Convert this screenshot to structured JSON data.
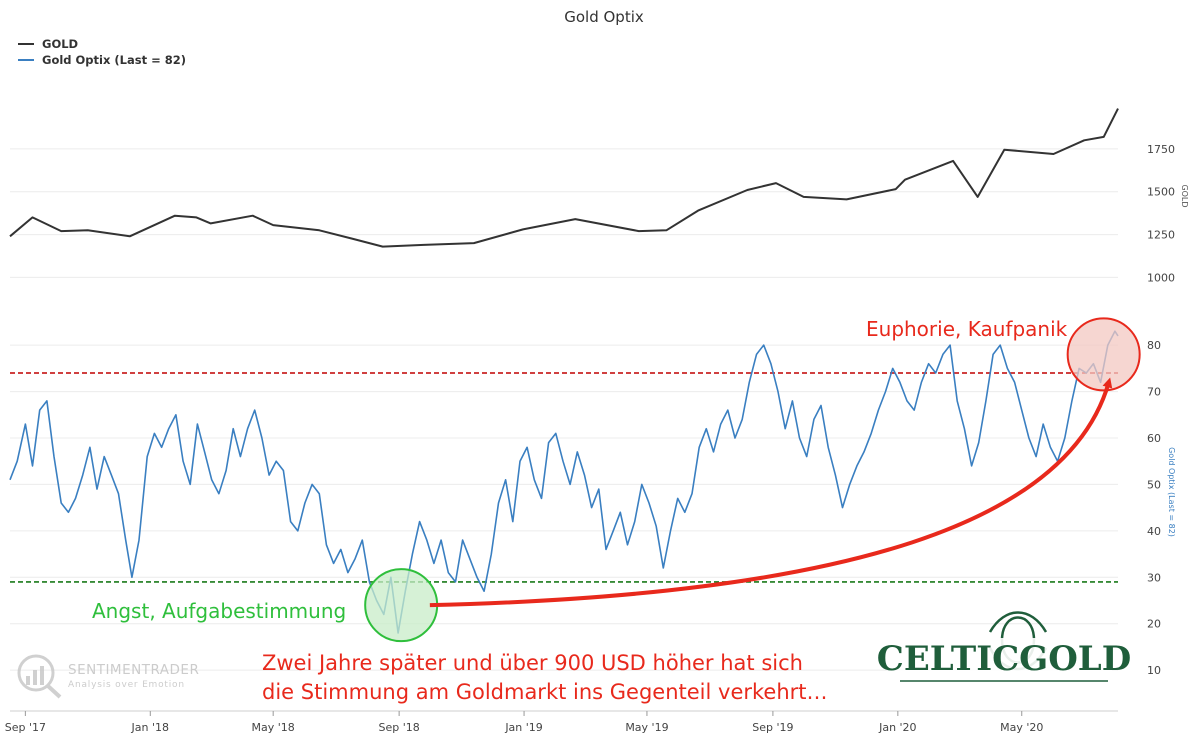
{
  "chart_data": {
    "type": "line",
    "title": "Gold Optix",
    "legend": {
      "placement": "top-left",
      "entries": [
        {
          "label": "GOLD",
          "color": "#333333"
        },
        {
          "label": "Gold Optix (Last = 82)",
          "color": "#3a7fc1"
        }
      ]
    },
    "x_axis": {
      "range": [
        "2017-08-17",
        "2020-08-03"
      ],
      "tick_dates": [
        "2017-09-01",
        "2018-01-01",
        "2018-05-01",
        "2018-09-01",
        "2019-01-01",
        "2019-05-01",
        "2019-09-01",
        "2020-01-01",
        "2020-05-01"
      ],
      "tick_labels": [
        "Sep '17",
        "Jan '18",
        "May '18",
        "Sep '18",
        "Jan '19",
        "May '19",
        "Sep '19",
        "Jan '20",
        "May '20"
      ]
    },
    "panels": [
      {
        "name": "GOLD",
        "axis_label": "GOLD",
        "ylim": [
          880,
          2000
        ],
        "y_ticks": [
          1000,
          1250,
          1500,
          1750
        ],
        "series": [
          {
            "name": "GOLD",
            "color": "#333333",
            "points": [
              [
                "2017-08-17",
                1240
              ],
              [
                "2017-09-08",
                1350
              ],
              [
                "2017-10-06",
                1270
              ],
              [
                "2017-11-01",
                1275
              ],
              [
                "2017-12-12",
                1240
              ],
              [
                "2018-01-25",
                1360
              ],
              [
                "2018-02-15",
                1350
              ],
              [
                "2018-03-01",
                1315
              ],
              [
                "2018-04-11",
                1360
              ],
              [
                "2018-05-01",
                1305
              ],
              [
                "2018-06-15",
                1275
              ],
              [
                "2018-07-18",
                1225
              ],
              [
                "2018-08-16",
                1180
              ],
              [
                "2018-09-25",
                1190
              ],
              [
                "2018-11-13",
                1200
              ],
              [
                "2018-12-31",
                1280
              ],
              [
                "2019-02-20",
                1340
              ],
              [
                "2019-04-23",
                1270
              ],
              [
                "2019-05-20",
                1275
              ],
              [
                "2019-06-20",
                1390
              ],
              [
                "2019-08-07",
                1510
              ],
              [
                "2019-09-04",
                1550
              ],
              [
                "2019-10-01",
                1470
              ],
              [
                "2019-11-12",
                1455
              ],
              [
                "2019-12-30",
                1515
              ],
              [
                "2020-01-08",
                1570
              ],
              [
                "2020-02-24",
                1680
              ],
              [
                "2020-03-19",
                1470
              ],
              [
                "2020-04-14",
                1745
              ],
              [
                "2020-06-01",
                1720
              ],
              [
                "2020-07-01",
                1800
              ],
              [
                "2020-07-20",
                1820
              ],
              [
                "2020-08-03",
                1985
              ]
            ]
          }
        ]
      },
      {
        "name": "Gold Optix",
        "axis_label": "Gold Optix (Last = 82)",
        "ylim": [
          4,
          88
        ],
        "y_ticks": [
          10,
          20,
          30,
          40,
          50,
          60,
          70,
          80
        ],
        "reference_lines": [
          {
            "value": 74,
            "color": "#c00000",
            "style": "dashed"
          },
          {
            "value": 29,
            "color": "#1a7a1a",
            "style": "dashed"
          }
        ],
        "series": [
          {
            "name": "Gold Optix (Last = 82)",
            "color": "#3a7fc1",
            "points": [
              [
                "2017-08-17",
                51
              ],
              [
                "2017-08-24",
                55
              ],
              [
                "2017-09-01",
                63
              ],
              [
                "2017-09-08",
                54
              ],
              [
                "2017-09-15",
                66
              ],
              [
                "2017-09-22",
                68
              ],
              [
                "2017-09-29",
                56
              ],
              [
                "2017-10-06",
                46
              ],
              [
                "2017-10-13",
                44
              ],
              [
                "2017-10-20",
                47
              ],
              [
                "2017-10-27",
                52
              ],
              [
                "2017-11-03",
                58
              ],
              [
                "2017-11-10",
                49
              ],
              [
                "2017-11-17",
                56
              ],
              [
                "2017-11-24",
                52
              ],
              [
                "2017-12-01",
                48
              ],
              [
                "2017-12-08",
                38
              ],
              [
                "2017-12-14",
                30
              ],
              [
                "2017-12-21",
                38
              ],
              [
                "2017-12-29",
                56
              ],
              [
                "2018-01-05",
                61
              ],
              [
                "2018-01-12",
                58
              ],
              [
                "2018-01-19",
                62
              ],
              [
                "2018-01-26",
                65
              ],
              [
                "2018-02-02",
                55
              ],
              [
                "2018-02-09",
                50
              ],
              [
                "2018-02-16",
                63
              ],
              [
                "2018-02-23",
                57
              ],
              [
                "2018-03-02",
                51
              ],
              [
                "2018-03-09",
                48
              ],
              [
                "2018-03-16",
                53
              ],
              [
                "2018-03-23",
                62
              ],
              [
                "2018-03-30",
                56
              ],
              [
                "2018-04-06",
                62
              ],
              [
                "2018-04-13",
                66
              ],
              [
                "2018-04-20",
                60
              ],
              [
                "2018-04-27",
                52
              ],
              [
                "2018-05-04",
                55
              ],
              [
                "2018-05-11",
                53
              ],
              [
                "2018-05-18",
                42
              ],
              [
                "2018-05-25",
                40
              ],
              [
                "2018-06-01",
                46
              ],
              [
                "2018-06-08",
                50
              ],
              [
                "2018-06-15",
                48
              ],
              [
                "2018-06-22",
                37
              ],
              [
                "2018-06-29",
                33
              ],
              [
                "2018-07-06",
                36
              ],
              [
                "2018-07-13",
                31
              ],
              [
                "2018-07-20",
                34
              ],
              [
                "2018-07-27",
                38
              ],
              [
                "2018-08-03",
                29
              ],
              [
                "2018-08-10",
                25
              ],
              [
                "2018-08-17",
                22
              ],
              [
                "2018-08-24",
                30
              ],
              [
                "2018-08-31",
                18
              ],
              [
                "2018-09-07",
                27
              ],
              [
                "2018-09-14",
                35
              ],
              [
                "2018-09-21",
                42
              ],
              [
                "2018-09-28",
                38
              ],
              [
                "2018-10-05",
                33
              ],
              [
                "2018-10-12",
                38
              ],
              [
                "2018-10-19",
                31
              ],
              [
                "2018-10-26",
                29
              ],
              [
                "2018-11-02",
                38
              ],
              [
                "2018-11-09",
                34
              ],
              [
                "2018-11-16",
                30
              ],
              [
                "2018-11-23",
                27
              ],
              [
                "2018-11-30",
                35
              ],
              [
                "2018-12-07",
                46
              ],
              [
                "2018-12-14",
                51
              ],
              [
                "2018-12-21",
                42
              ],
              [
                "2018-12-28",
                55
              ],
              [
                "2019-01-04",
                58
              ],
              [
                "2019-01-11",
                51
              ],
              [
                "2019-01-18",
                47
              ],
              [
                "2019-01-25",
                59
              ],
              [
                "2019-02-01",
                61
              ],
              [
                "2019-02-08",
                55
              ],
              [
                "2019-02-15",
                50
              ],
              [
                "2019-02-22",
                57
              ],
              [
                "2019-03-01",
                52
              ],
              [
                "2019-03-08",
                45
              ],
              [
                "2019-03-15",
                49
              ],
              [
                "2019-03-22",
                36
              ],
              [
                "2019-03-29",
                40
              ],
              [
                "2019-04-05",
                44
              ],
              [
                "2019-04-12",
                37
              ],
              [
                "2019-04-19",
                42
              ],
              [
                "2019-04-26",
                50
              ],
              [
                "2019-05-03",
                46
              ],
              [
                "2019-05-10",
                41
              ],
              [
                "2019-05-17",
                32
              ],
              [
                "2019-05-24",
                40
              ],
              [
                "2019-05-31",
                47
              ],
              [
                "2019-06-07",
                44
              ],
              [
                "2019-06-14",
                48
              ],
              [
                "2019-06-21",
                58
              ],
              [
                "2019-06-28",
                62
              ],
              [
                "2019-07-05",
                57
              ],
              [
                "2019-07-12",
                63
              ],
              [
                "2019-07-19",
                66
              ],
              [
                "2019-07-26",
                60
              ],
              [
                "2019-08-02",
                64
              ],
              [
                "2019-08-09",
                72
              ],
              [
                "2019-08-16",
                78
              ],
              [
                "2019-08-23",
                80
              ],
              [
                "2019-08-30",
                76
              ],
              [
                "2019-09-06",
                70
              ],
              [
                "2019-09-13",
                62
              ],
              [
                "2019-09-20",
                68
              ],
              [
                "2019-09-27",
                60
              ],
              [
                "2019-10-04",
                56
              ],
              [
                "2019-10-11",
                64
              ],
              [
                "2019-10-18",
                67
              ],
              [
                "2019-10-25",
                58
              ],
              [
                "2019-11-01",
                52
              ],
              [
                "2019-11-08",
                45
              ],
              [
                "2019-11-15",
                50
              ],
              [
                "2019-11-22",
                54
              ],
              [
                "2019-11-29",
                57
              ],
              [
                "2019-12-06",
                61
              ],
              [
                "2019-12-13",
                66
              ],
              [
                "2019-12-20",
                70
              ],
              [
                "2019-12-27",
                75
              ],
              [
                "2020-01-03",
                72
              ],
              [
                "2020-01-10",
                68
              ],
              [
                "2020-01-17",
                66
              ],
              [
                "2020-01-24",
                72
              ],
              [
                "2020-01-31",
                76
              ],
              [
                "2020-02-07",
                74
              ],
              [
                "2020-02-14",
                78
              ],
              [
                "2020-02-21",
                80
              ],
              [
                "2020-02-28",
                68
              ],
              [
                "2020-03-06",
                62
              ],
              [
                "2020-03-13",
                54
              ],
              [
                "2020-03-20",
                59
              ],
              [
                "2020-03-27",
                68
              ],
              [
                "2020-04-03",
                78
              ],
              [
                "2020-04-10",
                80
              ],
              [
                "2020-04-17",
                75
              ],
              [
                "2020-04-24",
                72
              ],
              [
                "2020-05-01",
                66
              ],
              [
                "2020-05-08",
                60
              ],
              [
                "2020-05-15",
                56
              ],
              [
                "2020-05-22",
                63
              ],
              [
                "2020-05-29",
                58
              ],
              [
                "2020-06-05",
                55
              ],
              [
                "2020-06-12",
                60
              ],
              [
                "2020-06-19",
                68
              ],
              [
                "2020-06-26",
                75
              ],
              [
                "2020-07-03",
                74
              ],
              [
                "2020-07-10",
                76
              ],
              [
                "2020-07-17",
                72
              ],
              [
                "2020-07-24",
                80
              ],
              [
                "2020-07-31",
                83
              ],
              [
                "2020-08-03",
                82
              ]
            ]
          }
        ]
      }
    ],
    "annotations": [
      {
        "text": "Euphorie, Kaufpanik",
        "color": "#e8291c"
      },
      {
        "text": "Angst, Aufgabestimmung",
        "color": "#2fbf3c"
      },
      {
        "text": "Zwei Jahre später und über 900 USD höher hat sich",
        "color": "#e8291c"
      },
      {
        "text": "die Stimmung am Goldmarkt ins Gegenteil verkehrt…",
        "color": "#e8291c"
      }
    ],
    "highlights": [
      {
        "date": "2018-09-03",
        "value": 24,
        "color": "#2fbf3c",
        "label": "Angst, Aufgabestimmung"
      },
      {
        "date": "2020-07-20",
        "value": 78,
        "color": "#e8291c",
        "label": "Euphorie, Kaufpanik"
      }
    ],
    "arrow": {
      "from": {
        "date": "2018-10-01",
        "value": 24
      },
      "to": {
        "date": "2020-07-25",
        "value": 72
      },
      "color": "#e8291c"
    },
    "grid": true
  },
  "watermark": {
    "name": "SENTIMENTRADER",
    "tagline": "Analysis over Emotion"
  },
  "logo": {
    "text": "CELTICGOLD"
  }
}
